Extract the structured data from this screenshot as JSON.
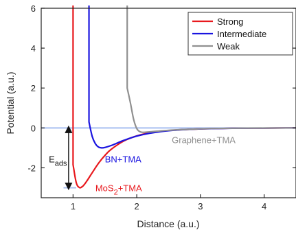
{
  "chart_data": {
    "type": "line",
    "title": "",
    "xlabel": "Distance (a.u.)",
    "ylabel": "Potential (a.u.)",
    "xlim": [
      0.5,
      4.5
    ],
    "ylim": [
      -3.5,
      6
    ],
    "xticks": [
      1,
      2,
      3,
      4
    ],
    "yticks": [
      -2,
      0,
      2,
      4,
      6
    ],
    "xtick_labels": [
      "1",
      "2",
      "3",
      "4"
    ],
    "ytick_labels": [
      "-2",
      "0",
      "2",
      "4",
      "6"
    ],
    "grid": false,
    "legend_position": "top-right",
    "series": [
      {
        "name": "Strong",
        "color": "#e8191e",
        "x": [
          1.0,
          1.05,
          1.1,
          1.15,
          1.2,
          1.3,
          1.4,
          1.5,
          1.6,
          1.8,
          2.0,
          2.2,
          2.5,
          3.0,
          3.5,
          4.0,
          4.5
        ],
        "y": [
          -1.84,
          -2.74,
          -2.99,
          -2.93,
          -2.74,
          -2.25,
          -1.77,
          -1.38,
          -1.07,
          -0.65,
          -0.4,
          -0.25,
          -0.13,
          -0.05,
          -0.02,
          -0.01,
          0.0
        ]
      },
      {
        "name": "Intermediate",
        "color": "#1a14e0",
        "x": [
          1.25,
          1.3,
          1.35,
          1.4,
          1.45,
          1.5,
          1.6,
          1.7,
          1.8,
          2.0,
          2.2,
          2.5,
          3.0,
          3.5,
          4.0,
          4.5
        ],
        "y": [
          0.3,
          -0.42,
          -0.79,
          -0.96,
          -1.0,
          -0.98,
          -0.88,
          -0.75,
          -0.62,
          -0.41,
          -0.27,
          -0.14,
          -0.05,
          -0.02,
          -0.01,
          0.0
        ]
      },
      {
        "name": "Weak",
        "color": "#909090",
        "x": [
          1.85,
          1.9,
          1.95,
          2.0,
          2.05,
          2.1,
          2.15,
          2.2,
          2.3,
          2.5,
          2.8,
          3.2,
          3.6,
          4.0,
          4.5
        ],
        "y": [
          2.0,
          1.26,
          0.44,
          -0.03,
          -0.19,
          -0.22,
          -0.21,
          -0.2,
          -0.17,
          -0.12,
          -0.07,
          -0.03,
          -0.015,
          -0.007,
          0.0
        ]
      }
    ],
    "reference_lines": [
      {
        "axis": "y",
        "value": 0,
        "color": "#a9bff0"
      },
      {
        "axis": "y",
        "value": -3.0,
        "xrange": [
          0.85,
          1.05
        ],
        "color": "#a9bff0"
      }
    ],
    "annotations": [
      {
        "text": "MoS",
        "subscript": "2",
        "suffix": "+TMA",
        "x": 1.35,
        "y": -3.0,
        "color": "#e8191e"
      },
      {
        "text": "BN+TMA",
        "x": 1.5,
        "y": -1.55,
        "color": "#1a14e0"
      },
      {
        "text": "Graphene+TMA",
        "x": 2.55,
        "y": -0.6,
        "color": "#909090"
      },
      {
        "text": "E",
        "subscript": "ads",
        "x": 0.62,
        "y": -1.55,
        "color": "#111111"
      }
    ],
    "arrow": {
      "x": 0.93,
      "y_from": 0.0,
      "y_to": -3.0
    }
  }
}
